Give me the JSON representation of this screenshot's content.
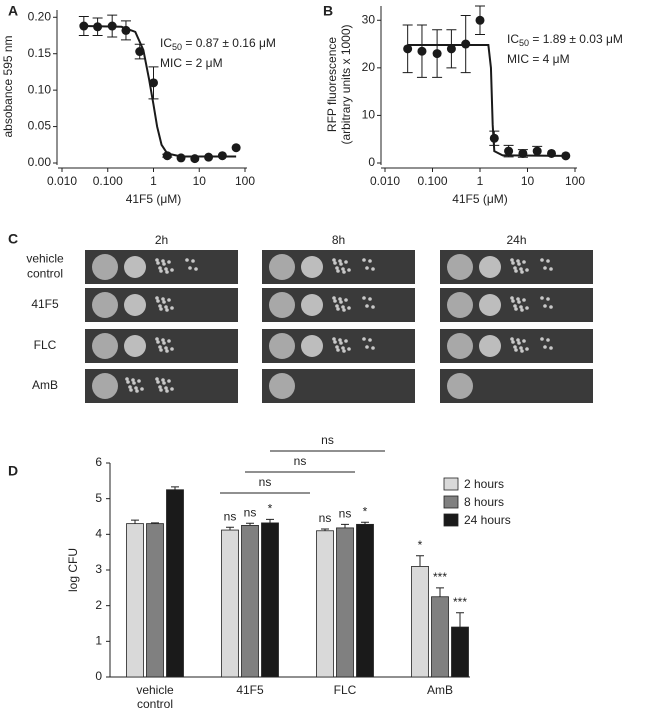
{
  "chart_data": [
    {
      "type": "scatter",
      "panel": "A",
      "xlabel": "41F5 (μM)",
      "ylabel": "absobance 595 nm",
      "xscale": "log",
      "xlim": [
        0.01,
        100
      ],
      "xticks": [
        {
          "value": 0.01,
          "label": "0.010"
        },
        {
          "value": 0.1,
          "label": "0.100"
        },
        1,
        10,
        100
      ],
      "ylim": [
        0,
        0.21
      ],
      "yticks": [
        {
          "value": 0,
          "label": "0.00"
        },
        0.05,
        {
          "value": 0.1,
          "label": "0.10"
        },
        0.15,
        {
          "value": 0.2,
          "label": "0.20"
        }
      ],
      "x": [
        0.03,
        0.06,
        0.125,
        0.25,
        0.5,
        1,
        2,
        4,
        8,
        16,
        32,
        64
      ],
      "values": [
        0.188,
        0.187,
        0.188,
        0.182,
        0.153,
        0.11,
        0.01,
        0.007,
        0.006,
        0.008,
        0.01,
        0.021
      ],
      "errors": [
        0.013,
        0.012,
        0.015,
        0.013,
        0.01,
        0.022,
        0.002,
        null,
        null,
        null,
        null,
        null
      ],
      "fit": {
        "x": [
          0.03,
          0.2,
          0.4,
          0.6,
          0.8,
          1,
          1.2,
          1.5,
          2,
          4,
          64
        ],
        "values": [
          0.188,
          0.187,
          0.18,
          0.155,
          0.115,
          0.08,
          0.05,
          0.025,
          0.013,
          0.009,
          0.009
        ]
      },
      "annotations": [
        {
          "text": "IC",
          "sub": "50",
          "rest": " = 0.87 ± 0.16 μM"
        },
        {
          "text": "MIC = 2 μM"
        }
      ],
      "color": "#1a1a1a"
    },
    {
      "type": "scatter",
      "panel": "B",
      "xlabel": "41F5 (μM)",
      "ylabel": [
        "RFP fluorescence",
        "(arbitrary units x 1000)"
      ],
      "xscale": "log",
      "xlim": [
        0.01,
        100
      ],
      "xticks": [
        {
          "value": 0.01,
          "label": "0.010"
        },
        {
          "value": 0.1,
          "label": "0.100"
        },
        1,
        10,
        100
      ],
      "ylim": [
        0,
        33
      ],
      "yticks": [
        0,
        10,
        20,
        30
      ],
      "x": [
        0.03,
        0.06,
        0.125,
        0.25,
        0.5,
        1,
        2,
        4,
        8,
        16,
        32,
        64
      ],
      "values": [
        24,
        23.5,
        23,
        24,
        25,
        30,
        5.2,
        2.5,
        2,
        2.5,
        2,
        1.5
      ],
      "errors": [
        5,
        5.5,
        5,
        4,
        6,
        3,
        1.5,
        1.2,
        0.8,
        1,
        null,
        null
      ],
      "fit": {
        "x": [
          0.03,
          1.5,
          1.7,
          1.85,
          2,
          3,
          64
        ],
        "values": [
          24.8,
          24.8,
          20,
          8,
          2.5,
          1.6,
          1.5
        ]
      },
      "annotations": [
        {
          "text": "IC",
          "sub": "50",
          "rest": " = 1.89 ± 0.03 μM"
        },
        {
          "text": "MIC = 4 μM"
        }
      ],
      "color": "#1a1a1a"
    },
    {
      "type": "bar",
      "panel": "D",
      "ylabel": "log CFU",
      "ylim": [
        0,
        6
      ],
      "yticks": [
        0,
        1,
        2,
        3,
        4,
        5,
        6
      ],
      "categories": [
        [
          "vehicle",
          "control"
        ],
        [
          "41F5"
        ],
        [
          "FLC"
        ],
        [
          "AmB"
        ]
      ],
      "series": [
        {
          "name": "2 hours",
          "color": "#d9d9d9",
          "values": [
            4.3,
            4.12,
            4.1,
            3.1
          ],
          "errors": [
            0.1,
            0.08,
            0.05,
            0.3
          ],
          "significance": [
            null,
            "ns",
            "ns",
            "*"
          ]
        },
        {
          "name": "8 hours",
          "color": "#808080",
          "values": [
            4.3,
            4.25,
            4.18,
            2.25
          ],
          "errors": [
            0.02,
            0.06,
            0.1,
            0.25
          ],
          "significance": [
            null,
            "ns",
            "ns",
            "***"
          ]
        },
        {
          "name": "24 hours",
          "color": "#1a1a1a",
          "values": [
            5.25,
            4.32,
            4.28,
            1.4
          ],
          "errors": [
            0.08,
            0.1,
            0.06,
            0.4
          ],
          "significance": [
            null,
            "*",
            "*",
            "***"
          ]
        }
      ],
      "brackets": [
        "ns",
        "ns",
        "ns"
      ]
    }
  ],
  "panel_c": {
    "label": "C",
    "columns": [
      "2h",
      "8h",
      "24h"
    ],
    "rows": [
      [
        "vehicle",
        "control"
      ],
      [
        "41F5"
      ],
      [
        "FLC"
      ],
      [
        "AmB"
      ]
    ]
  }
}
